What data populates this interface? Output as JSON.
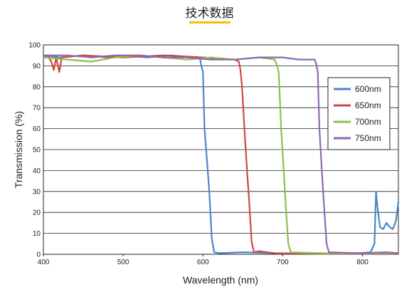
{
  "heading": "技术数据",
  "chart_data": {
    "type": "line",
    "title": "",
    "xlabel": "Wavelength (nm)",
    "ylabel": "Transmission (%)",
    "xlim": [
      400,
      845
    ],
    "ylim": [
      0,
      100
    ],
    "x_ticks": [
      400,
      500,
      600,
      700,
      800
    ],
    "y_ticks": [
      0,
      10,
      20,
      30,
      40,
      50,
      60,
      70,
      80,
      90,
      100
    ],
    "grid": "horizontal",
    "legend_position": "right",
    "series": [
      {
        "name": "600nm",
        "color": "#4a86c8",
        "points": [
          [
            400,
            95
          ],
          [
            420,
            94
          ],
          [
            450,
            95
          ],
          [
            480,
            94
          ],
          [
            500,
            95
          ],
          [
            530,
            94
          ],
          [
            560,
            95
          ],
          [
            590,
            94
          ],
          [
            596,
            94
          ],
          [
            598,
            90
          ],
          [
            600,
            87
          ],
          [
            602,
            60
          ],
          [
            605,
            45
          ],
          [
            608,
            30
          ],
          [
            611,
            8
          ],
          [
            614,
            1
          ],
          [
            620,
            0.5
          ],
          [
            650,
            1
          ],
          [
            700,
            0.4
          ],
          [
            750,
            0.3
          ],
          [
            790,
            0.4
          ],
          [
            810,
            1
          ],
          [
            815,
            5
          ],
          [
            817,
            30
          ],
          [
            819,
            22
          ],
          [
            822,
            13
          ],
          [
            826,
            12
          ],
          [
            830,
            15
          ],
          [
            834,
            13
          ],
          [
            838,
            12
          ],
          [
            842,
            16
          ],
          [
            845,
            25
          ]
        ]
      },
      {
        "name": "650nm",
        "color": "#cc4a3e",
        "points": [
          [
            400,
            94
          ],
          [
            405,
            95
          ],
          [
            410,
            92
          ],
          [
            413,
            88
          ],
          [
            416,
            94
          ],
          [
            420,
            87
          ],
          [
            423,
            94
          ],
          [
            450,
            95
          ],
          [
            500,
            94
          ],
          [
            550,
            95
          ],
          [
            600,
            94
          ],
          [
            640,
            93
          ],
          [
            645,
            92
          ],
          [
            647,
            88
          ],
          [
            649,
            80
          ],
          [
            652,
            60
          ],
          [
            655,
            42
          ],
          [
            658,
            25
          ],
          [
            661,
            6
          ],
          [
            664,
            1
          ],
          [
            670,
            1.5
          ],
          [
            690,
            0.5
          ],
          [
            720,
            0.4
          ],
          [
            760,
            0.3
          ],
          [
            800,
            0.3
          ],
          [
            845,
            0.4
          ]
        ]
      },
      {
        "name": "700nm",
        "color": "#8fc04a",
        "points": [
          [
            400,
            94
          ],
          [
            430,
            93
          ],
          [
            460,
            92
          ],
          [
            490,
            94
          ],
          [
            520,
            95
          ],
          [
            550,
            94
          ],
          [
            580,
            93
          ],
          [
            610,
            94
          ],
          [
            640,
            93
          ],
          [
            670,
            94
          ],
          [
            690,
            93
          ],
          [
            693,
            90
          ],
          [
            695,
            87
          ],
          [
            698,
            60
          ],
          [
            701,
            42
          ],
          [
            704,
            22
          ],
          [
            707,
            5
          ],
          [
            710,
            1
          ],
          [
            720,
            0.8
          ],
          [
            750,
            0.5
          ],
          [
            800,
            0.4
          ],
          [
            845,
            0.5
          ]
        ]
      },
      {
        "name": "750nm",
        "color": "#8e68b3",
        "points": [
          [
            400,
            95
          ],
          [
            430,
            95
          ],
          [
            460,
            94
          ],
          [
            490,
            95
          ],
          [
            520,
            95
          ],
          [
            550,
            94
          ],
          [
            580,
            94
          ],
          [
            610,
            93
          ],
          [
            640,
            93
          ],
          [
            670,
            94
          ],
          [
            700,
            94
          ],
          [
            720,
            93
          ],
          [
            740,
            93
          ],
          [
            742,
            91
          ],
          [
            744,
            87
          ],
          [
            746,
            60
          ],
          [
            749,
            40
          ],
          [
            752,
            22
          ],
          [
            755,
            5
          ],
          [
            758,
            1
          ],
          [
            770,
            0.8
          ],
          [
            800,
            0.5
          ],
          [
            830,
            1
          ],
          [
            845,
            0.5
          ]
        ]
      }
    ]
  }
}
